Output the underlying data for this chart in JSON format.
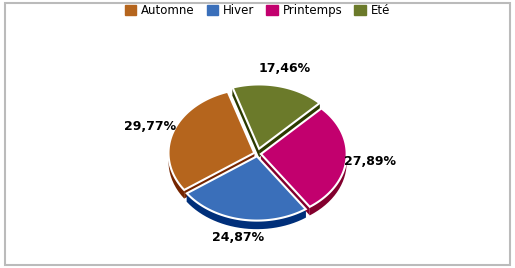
{
  "labels": [
    "Automne",
    "Hiver",
    "Printemps",
    "Eté"
  ],
  "values": [
    29.77,
    24.87,
    27.89,
    17.46
  ],
  "colors": [
    "#b5651d",
    "#3a6fba",
    "#c2006e",
    "#6b7a2a"
  ],
  "explode": [
    0.04,
    0.04,
    0.04,
    0.08
  ],
  "label_texts": [
    "29,77%",
    "24,87%",
    "27,89%",
    "17,46%"
  ],
  "background_color": "#ffffff",
  "border_color": "#bbbbbb",
  "startangle": -252,
  "label_dist": 1.28,
  "figsize": [
    5.15,
    2.68
  ],
  "dpi": 100
}
